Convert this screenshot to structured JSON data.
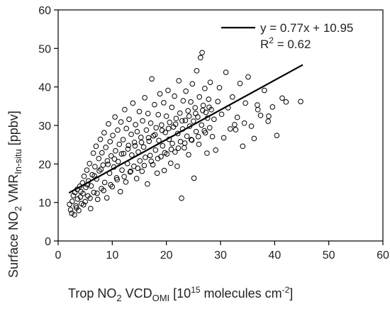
{
  "chart_data": {
    "type": "scatter",
    "title": "",
    "xlabel": {
      "prefix": "Trop NO",
      "sub1": "2",
      "mid": " VCD",
      "sub2": "OMI",
      "mid2": " [10",
      "sup1": "15",
      "mid3": " molecules cm",
      "sup2": "-2",
      "suffix": "]"
    },
    "ylabel": {
      "prefix": "Surface NO",
      "sub1": "2",
      "mid": " VMR",
      "sub2": "In-situ",
      "suffix": " [ppbv]"
    },
    "xlim": [
      0,
      60
    ],
    "ylim": [
      0,
      60
    ],
    "xticks": [
      "0",
      "10",
      "20",
      "30",
      "40",
      "50",
      "60"
    ],
    "yticks": [
      "0",
      "10",
      "20",
      "30",
      "40",
      "50",
      "60"
    ],
    "grid": false,
    "legend": {
      "placement": "top-right",
      "equation": "y = 0.77x + 10.95",
      "r2_prefix": "R",
      "r2_sup": "2",
      "r2_suffix": " = 0.62"
    },
    "fit_line": {
      "slope": 0.77,
      "intercept": 10.95,
      "x_range": [
        2,
        45.2
      ]
    },
    "series": [
      {
        "marker": "open-circle",
        "points": [
          [
            2.1,
            9.5
          ],
          [
            2.3,
            8.1
          ],
          [
            2.5,
            7.2
          ],
          [
            2.6,
            10.3
          ],
          [
            2.8,
            11.8
          ],
          [
            3.0,
            6.8
          ],
          [
            3.1,
            12.6
          ],
          [
            3.3,
            9.1
          ],
          [
            3.5,
            13.4
          ],
          [
            3.6,
            10.9
          ],
          [
            3.8,
            7.9
          ],
          [
            4.0,
            14.2
          ],
          [
            4.1,
            11.4
          ],
          [
            4.3,
            9.7
          ],
          [
            4.5,
            15.1
          ],
          [
            4.6,
            12.3
          ],
          [
            4.8,
            16.8
          ],
          [
            5.0,
            10.2
          ],
          [
            5.1,
            13.9
          ],
          [
            5.3,
            18.4
          ],
          [
            5.5,
            11.7
          ],
          [
            5.6,
            15.6
          ],
          [
            5.8,
            20.1
          ],
          [
            6.0,
            8.4
          ],
          [
            6.1,
            14.3
          ],
          [
            6.3,
            17.2
          ],
          [
            6.5,
            22.8
          ],
          [
            6.6,
            12.6
          ],
          [
            6.8,
            19.3
          ],
          [
            7.0,
            24.6
          ],
          [
            7.1,
            16.1
          ],
          [
            7.3,
            10.8
          ],
          [
            7.5,
            21.4
          ],
          [
            7.6,
            18.2
          ],
          [
            7.8,
            26.4
          ],
          [
            8.0,
            13.6
          ],
          [
            8.1,
            22.9
          ],
          [
            8.3,
            19.7
          ],
          [
            8.5,
            28.1
          ],
          [
            8.6,
            15.2
          ],
          [
            8.8,
            24.3
          ],
          [
            9.0,
            11.2
          ],
          [
            9.1,
            20.8
          ],
          [
            9.3,
            30.4
          ],
          [
            9.5,
            17.6
          ],
          [
            9.6,
            25.8
          ],
          [
            9.8,
            22.1
          ],
          [
            10.0,
            14.1
          ],
          [
            10.1,
            27.4
          ],
          [
            10.3,
            19.2
          ],
          [
            10.5,
            32.2
          ],
          [
            10.6,
            23.4
          ],
          [
            10.8,
            16.4
          ],
          [
            11.0,
            28.8
          ],
          [
            11.1,
            20.6
          ],
          [
            11.3,
            25.1
          ],
          [
            11.5,
            12.8
          ],
          [
            11.6,
            30.9
          ],
          [
            11.8,
            18.4
          ],
          [
            12.0,
            26.3
          ],
          [
            12.1,
            22.7
          ],
          [
            12.3,
            34.1
          ],
          [
            12.5,
            15.3
          ],
          [
            12.6,
            29.2
          ],
          [
            12.8,
            20.1
          ],
          [
            13.0,
            24.8
          ],
          [
            13.1,
            31.6
          ],
          [
            13.3,
            17.9
          ],
          [
            13.5,
            27.7
          ],
          [
            13.6,
            22.3
          ],
          [
            13.8,
            35.8
          ],
          [
            14.0,
            19.4
          ],
          [
            14.1,
            25.6
          ],
          [
            14.3,
            30.2
          ],
          [
            14.5,
            16.2
          ],
          [
            14.6,
            28.4
          ],
          [
            14.8,
            23.1
          ],
          [
            15.0,
            33.6
          ],
          [
            15.1,
            20.8
          ],
          [
            15.3,
            26.9
          ],
          [
            15.5,
            18.1
          ],
          [
            15.6,
            31.2
          ],
          [
            15.8,
            24.4
          ],
          [
            16.0,
            37.2
          ],
          [
            16.1,
            21.7
          ],
          [
            16.3,
            28.8
          ],
          [
            16.5,
            14.8
          ],
          [
            16.6,
            33.1
          ],
          [
            16.8,
            25.9
          ],
          [
            17.0,
            22.2
          ],
          [
            17.1,
            30.6
          ],
          [
            17.3,
            42.1
          ],
          [
            17.5,
            19.8
          ],
          [
            17.6,
            27.3
          ],
          [
            17.8,
            35.4
          ],
          [
            18.0,
            23.6
          ],
          [
            18.1,
            29.4
          ],
          [
            18.3,
            17.6
          ],
          [
            18.5,
            32.8
          ],
          [
            18.6,
            26.1
          ],
          [
            18.8,
            38.2
          ],
          [
            19.0,
            21.9
          ],
          [
            19.1,
            30.1
          ],
          [
            19.3,
            24.7
          ],
          [
            19.5,
            35.9
          ],
          [
            19.6,
            18.3
          ],
          [
            19.8,
            28.2
          ],
          [
            20.0,
            32.4
          ],
          [
            20.1,
            22.6
          ],
          [
            20.3,
            39.1
          ],
          [
            20.5,
            26.4
          ],
          [
            20.6,
            30.8
          ],
          [
            20.8,
            20.2
          ],
          [
            21.0,
            34.7
          ],
          [
            21.1,
            25.3
          ],
          [
            21.3,
            29.6
          ],
          [
            21.5,
            37.6
          ],
          [
            21.6,
            23.1
          ],
          [
            21.8,
            31.8
          ],
          [
            22.0,
            19.4
          ],
          [
            22.1,
            27.9
          ],
          [
            22.3,
            41.6
          ],
          [
            22.5,
            33.2
          ],
          [
            22.6,
            25.8
          ],
          [
            22.8,
            11.1
          ],
          [
            23.0,
            29.1
          ],
          [
            23.1,
            36.4
          ],
          [
            23.3,
            24.2
          ],
          [
            23.5,
            31.3
          ],
          [
            23.6,
            38.9
          ],
          [
            23.8,
            27.2
          ],
          [
            24.0,
            33.8
          ],
          [
            24.1,
            22.4
          ],
          [
            24.3,
            29.8
          ],
          [
            24.5,
            36.1
          ],
          [
            24.6,
            26.3
          ],
          [
            24.8,
            40.8
          ],
          [
            25.0,
            31.1
          ],
          [
            25.1,
            16.3
          ],
          [
            25.3,
            34.6
          ],
          [
            25.5,
            28.4
          ],
          [
            25.6,
            44.2
          ],
          [
            25.8,
            32.2
          ],
          [
            26.0,
            25.1
          ],
          [
            26.1,
            37.4
          ],
          [
            26.3,
            47.6
          ],
          [
            26.5,
            30.1
          ],
          [
            26.6,
            48.9
          ],
          [
            26.8,
            35.2
          ],
          [
            27.0,
            28.6
          ],
          [
            27.1,
            39.6
          ],
          [
            27.3,
            33.4
          ],
          [
            27.5,
            22.8
          ],
          [
            27.6,
            31.9
          ],
          [
            27.8,
            36.8
          ],
          [
            28.0,
            29.4
          ],
          [
            28.1,
            41.2
          ],
          [
            28.3,
            34.1
          ],
          [
            28.5,
            27.1
          ],
          [
            28.8,
            31.6
          ],
          [
            29.1,
            23.6
          ],
          [
            29.5,
            36.2
          ],
          [
            29.8,
            39.8
          ],
          [
            30.2,
            32.9
          ],
          [
            30.6,
            26.8
          ],
          [
            31.0,
            43.8
          ],
          [
            31.4,
            34.6
          ],
          [
            31.8,
            29.1
          ],
          [
            32.2,
            37.4
          ],
          [
            32.6,
            30.2
          ],
          [
            33.1,
            32.1
          ],
          [
            33.6,
            40.9
          ],
          [
            34.1,
            24.6
          ],
          [
            34.6,
            35.8
          ],
          [
            35.1,
            42.6
          ],
          [
            35.7,
            29.8
          ],
          [
            36.2,
            26.6
          ],
          [
            36.8,
            35.3
          ],
          [
            37.4,
            32.6
          ],
          [
            38.1,
            39.1
          ],
          [
            38.8,
            31.1
          ],
          [
            39.6,
            34.8
          ],
          [
            40.4,
            27.4
          ],
          [
            41.4,
            37.1
          ],
          [
            42.1,
            36.1
          ],
          [
            44.8,
            36.2
          ],
          [
            38.9,
            32.4
          ],
          [
            36.9,
            34.1
          ],
          [
            34.4,
            30.6
          ],
          [
            32.8,
            28.9
          ],
          [
            4.2,
            12.8
          ],
          [
            5.4,
            14.6
          ],
          [
            6.7,
            16.9
          ],
          [
            7.9,
            18.6
          ],
          [
            9.2,
            19.9
          ],
          [
            10.4,
            21.3
          ],
          [
            11.7,
            22.6
          ],
          [
            12.9,
            23.9
          ],
          [
            14.2,
            24.7
          ],
          [
            15.4,
            25.6
          ],
          [
            16.7,
            26.8
          ],
          [
            17.9,
            27.6
          ],
          [
            19.2,
            28.7
          ],
          [
            20.4,
            29.2
          ],
          [
            21.7,
            30.3
          ],
          [
            22.9,
            31.2
          ],
          [
            24.2,
            32.4
          ],
          [
            25.4,
            33.1
          ],
          [
            26.7,
            33.9
          ],
          [
            27.9,
            34.7
          ],
          [
            3.4,
            8.6
          ],
          [
            4.7,
            9.4
          ],
          [
            5.9,
            11.1
          ],
          [
            7.2,
            12.4
          ],
          [
            8.4,
            13.1
          ],
          [
            9.7,
            14.6
          ],
          [
            10.9,
            15.9
          ],
          [
            12.2,
            16.7
          ],
          [
            13.4,
            18.1
          ],
          [
            14.7,
            18.9
          ],
          [
            15.9,
            19.6
          ],
          [
            17.2,
            20.7
          ],
          [
            18.4,
            21.4
          ],
          [
            19.7,
            22.9
          ],
          [
            20.9,
            23.8
          ],
          [
            22.2,
            24.1
          ],
          [
            23.4,
            25.4
          ],
          [
            24.7,
            26.2
          ],
          [
            25.9,
            27.1
          ],
          [
            27.2,
            28.1
          ]
        ]
      }
    ]
  }
}
